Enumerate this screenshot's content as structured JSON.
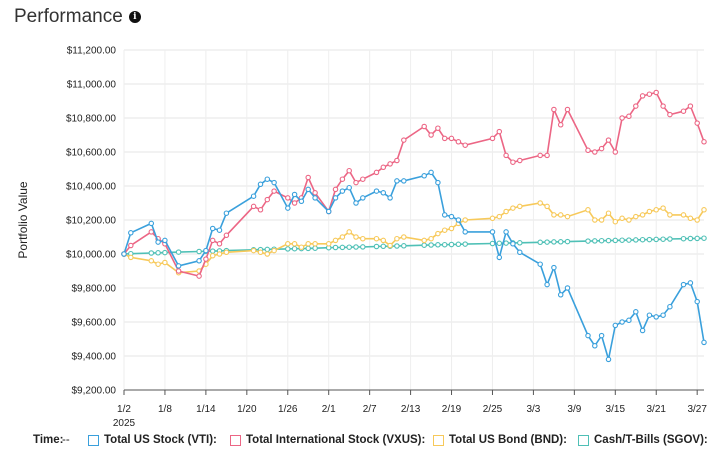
{
  "header": {
    "title": "Performance",
    "info_icon": "info-icon"
  },
  "legend": {
    "time_label": "Time:",
    "time_value": "--",
    "items": [
      {
        "label": "Total US Stock (VTI):",
        "color": "#3aa0dc"
      },
      {
        "label": "Total International Stock (VXUS):",
        "color": "#ec6685"
      },
      {
        "label": "Total US Bond (BND):",
        "color": "#f7c95a"
      },
      {
        "label": "Cash/T-Bills (SGOV):",
        "color": "#4fc0b6"
      }
    ]
  },
  "chart_data": {
    "type": "line",
    "ylabel": "Portfolio Value",
    "ylim": [
      9200,
      11200
    ],
    "yticks": [
      "$9,200.00",
      "$9,400.00",
      "$9,600.00",
      "$9,800.00",
      "$10,000.00",
      "$10,200.00",
      "$10,400.00",
      "$10,600.00",
      "$10,800.00",
      "$11,000.00",
      "$11,200.00"
    ],
    "ytick_values": [
      9200,
      9400,
      9600,
      9800,
      10000,
      10200,
      10400,
      10600,
      10800,
      11000,
      11200
    ],
    "xlim": [
      0,
      85
    ],
    "xticks": [
      {
        "x": 0,
        "label": "1/2",
        "sub": "2025"
      },
      {
        "x": 6,
        "label": "1/8"
      },
      {
        "x": 12,
        "label": "1/14"
      },
      {
        "x": 18,
        "label": "1/20"
      },
      {
        "x": 24,
        "label": "1/26"
      },
      {
        "x": 30,
        "label": "2/1"
      },
      {
        "x": 36,
        "label": "2/7"
      },
      {
        "x": 42,
        "label": "2/13"
      },
      {
        "x": 48,
        "label": "2/19"
      },
      {
        "x": 54,
        "label": "2/25"
      },
      {
        "x": 60,
        "label": "3/3"
      },
      {
        "x": 66,
        "label": "3/9"
      },
      {
        "x": 72,
        "label": "3/15"
      },
      {
        "x": 78,
        "label": "3/21"
      },
      {
        "x": 84,
        "label": "3/27"
      }
    ],
    "series": [
      {
        "name": "Total US Stock (VTI)",
        "color": "#3aa0dc",
        "x": [
          0,
          1,
          4,
          5,
          6,
          8,
          11,
          12,
          13,
          14,
          15,
          19,
          20,
          21,
          22,
          24,
          25,
          26,
          27,
          28,
          30,
          31,
          32,
          33,
          34,
          35,
          37,
          38,
          39,
          40,
          41,
          44,
          45,
          46,
          47,
          48,
          49,
          50,
          54,
          55,
          56,
          57,
          58,
          61,
          62,
          63,
          64,
          65,
          68,
          69,
          70,
          71,
          72,
          73,
          74,
          75,
          76,
          77,
          78,
          79,
          80,
          82,
          83,
          84,
          85
        ],
        "y": [
          10000,
          10125,
          10180,
          10070,
          10080,
          9930,
          9960,
          10020,
          10150,
          10140,
          10240,
          10340,
          10410,
          10440,
          10420,
          10270,
          10350,
          10310,
          10380,
          10330,
          10250,
          10330,
          10370,
          10390,
          10300,
          10330,
          10370,
          10360,
          10330,
          10430,
          10430,
          10460,
          10480,
          10420,
          10230,
          10220,
          10200,
          10130,
          10130,
          9980,
          10130,
          10060,
          10010,
          9940,
          9820,
          9920,
          9760,
          9800,
          9520,
          9460,
          9520,
          9380,
          9580,
          9600,
          9610,
          9660,
          9550,
          9640,
          9630,
          9640,
          9690,
          9820,
          9830,
          9720,
          9480
        ]
      },
      {
        "name": "Total International Stock (VXUS)",
        "color": "#ec6685",
        "x": [
          0,
          1,
          4,
          5,
          6,
          8,
          11,
          12,
          13,
          14,
          15,
          19,
          20,
          21,
          22,
          24,
          25,
          26,
          27,
          28,
          30,
          31,
          32,
          33,
          34,
          35,
          37,
          38,
          39,
          40,
          41,
          44,
          45,
          46,
          47,
          48,
          49,
          50,
          54,
          55,
          56,
          57,
          58,
          61,
          62,
          63,
          64,
          65,
          68,
          69,
          70,
          71,
          72,
          73,
          74,
          75,
          76,
          77,
          78,
          79,
          80,
          82,
          83,
          84,
          85
        ],
        "y": [
          10000,
          10050,
          10130,
          10090,
          10060,
          9900,
          9870,
          9970,
          10080,
          10060,
          10110,
          10280,
          10260,
          10320,
          10370,
          10330,
          10300,
          10330,
          10450,
          10360,
          10250,
          10380,
          10440,
          10490,
          10420,
          10440,
          10480,
          10510,
          10530,
          10550,
          10670,
          10750,
          10700,
          10740,
          10680,
          10680,
          10660,
          10640,
          10680,
          10720,
          10580,
          10540,
          10550,
          10580,
          10580,
          10850,
          10760,
          10850,
          10610,
          10600,
          10620,
          10670,
          10600,
          10800,
          10810,
          10870,
          10930,
          10940,
          10950,
          10870,
          10820,
          10840,
          10870,
          10770,
          10660
        ]
      },
      {
        "name": "Total US Bond (BND)",
        "color": "#f7c95a",
        "x": [
          0,
          1,
          4,
          5,
          6,
          8,
          11,
          12,
          13,
          14,
          15,
          19,
          20,
          21,
          22,
          24,
          25,
          26,
          27,
          28,
          30,
          31,
          32,
          33,
          34,
          35,
          37,
          38,
          39,
          40,
          41,
          44,
          45,
          46,
          47,
          48,
          49,
          50,
          54,
          55,
          56,
          57,
          58,
          61,
          62,
          63,
          64,
          65,
          68,
          69,
          70,
          71,
          72,
          73,
          74,
          75,
          76,
          77,
          78,
          79,
          80,
          82,
          83,
          84,
          85
        ],
        "y": [
          10000,
          9980,
          9960,
          9940,
          9950,
          9890,
          9900,
          9940,
          9990,
          10000,
          10010,
          10020,
          10010,
          10000,
          10020,
          10060,
          10060,
          10040,
          10060,
          10060,
          10060,
          10080,
          10100,
          10130,
          10100,
          10090,
          10090,
          10080,
          10050,
          10090,
          10100,
          10080,
          10090,
          10120,
          10140,
          10150,
          10180,
          10200,
          10210,
          10220,
          10250,
          10270,
          10280,
          10300,
          10280,
          10230,
          10230,
          10220,
          10260,
          10200,
          10200,
          10240,
          10190,
          10210,
          10200,
          10220,
          10230,
          10250,
          10260,
          10270,
          10230,
          10230,
          10210,
          10200,
          10260
        ]
      },
      {
        "name": "Cash/T-Bills (SGOV)",
        "color": "#4fc0b6",
        "x": [
          0,
          1,
          4,
          5,
          6,
          8,
          11,
          12,
          13,
          14,
          15,
          19,
          20,
          21,
          22,
          24,
          25,
          26,
          27,
          28,
          30,
          31,
          32,
          33,
          34,
          35,
          37,
          38,
          39,
          40,
          41,
          44,
          45,
          46,
          47,
          48,
          49,
          50,
          54,
          55,
          56,
          57,
          58,
          61,
          62,
          63,
          64,
          65,
          68,
          69,
          70,
          71,
          72,
          73,
          74,
          75,
          76,
          77,
          78,
          79,
          80,
          82,
          83,
          84,
          85
        ],
        "y": [
          10000,
          10002,
          10006,
          10007,
          10008,
          10011,
          10015,
          10016,
          10017,
          10018,
          10020,
          10025,
          10026,
          10027,
          10028,
          10030,
          10031,
          10032,
          10033,
          10034,
          10037,
          10038,
          10039,
          10040,
          10041,
          10042,
          10044,
          10045,
          10046,
          10047,
          10048,
          10052,
          10053,
          10054,
          10055,
          10056,
          10057,
          10058,
          10062,
          10063,
          10064,
          10065,
          10066,
          10069,
          10070,
          10071,
          10072,
          10073,
          10076,
          10077,
          10078,
          10079,
          10080,
          10081,
          10082,
          10083,
          10084,
          10085,
          10086,
          10087,
          10088,
          10090,
          10091,
          10092,
          10093
        ]
      }
    ]
  }
}
